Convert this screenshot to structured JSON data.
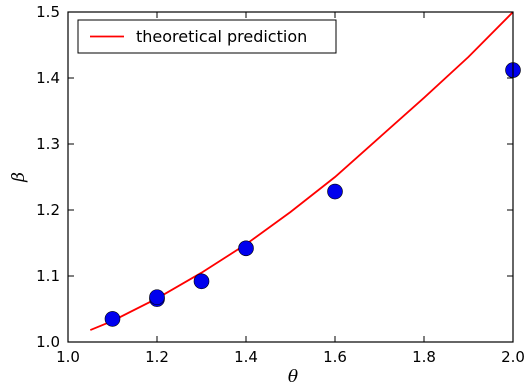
{
  "chart_data": {
    "type": "scatter",
    "xlabel": "θ",
    "ylabel": "β",
    "xlim": [
      1.0,
      2.0
    ],
    "ylim": [
      1.0,
      1.5
    ],
    "xticks": [
      "1.0",
      "1.2",
      "1.4",
      "1.6",
      "1.8",
      "2.0"
    ],
    "yticks": [
      "1.0",
      "1.1",
      "1.2",
      "1.3",
      "1.4",
      "1.5"
    ],
    "grid": false,
    "legend_position": "top-left",
    "series": [
      {
        "name": "theoretical prediction",
        "kind": "line",
        "color": "#ff0000",
        "x": [
          1.05,
          1.1,
          1.2,
          1.3,
          1.4,
          1.5,
          1.6,
          1.7,
          1.8,
          1.9,
          2.0
        ],
        "y": [
          1.018,
          1.032,
          1.066,
          1.105,
          1.148,
          1.197,
          1.25,
          1.31,
          1.37,
          1.432,
          1.5
        ]
      },
      {
        "name": "",
        "kind": "scatter",
        "color": "#0000ee",
        "x": [
          1.1,
          1.2,
          1.2,
          1.3,
          1.4,
          1.6,
          2.0
        ],
        "y": [
          1.035,
          1.065,
          1.068,
          1.092,
          1.142,
          1.228,
          1.412
        ]
      }
    ]
  }
}
